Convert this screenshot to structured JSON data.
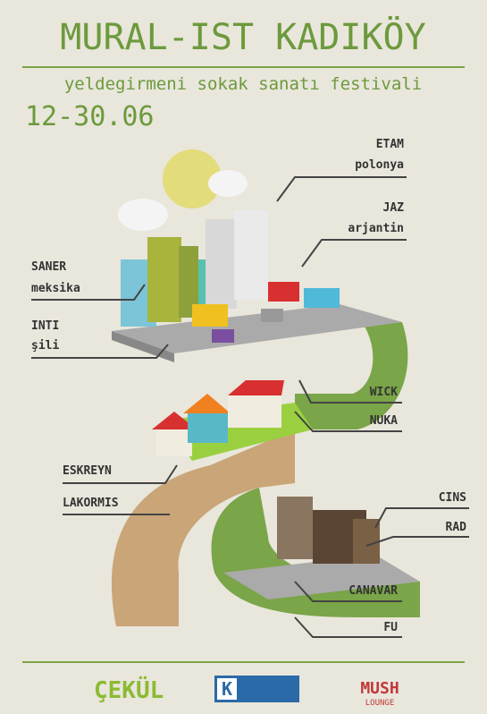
{
  "header": {
    "title": "MURAL-IST KADIKÖY",
    "subtitle": "yeldegirmeni sokak sanatı festivali",
    "dates": "12-30.06"
  },
  "artists": [
    {
      "name": "ETAM",
      "country": "polonya"
    },
    {
      "name": "JAZ",
      "country": "arjantin"
    },
    {
      "name": "SANER",
      "country": "meksika"
    },
    {
      "name": "INTI",
      "country": "şili"
    },
    {
      "name": "WICK"
    },
    {
      "name": "NUKA"
    },
    {
      "name": "ESKREYN"
    },
    {
      "name": "LAKORMIS"
    },
    {
      "name": "CINS"
    },
    {
      "name": "RAD"
    },
    {
      "name": "CANAVAR"
    },
    {
      "name": "FU"
    }
  ],
  "sponsors": {
    "first": "ÇEKÜL",
    "second": "K",
    "third": "MUSH",
    "third_sub": "LOUNGE"
  }
}
